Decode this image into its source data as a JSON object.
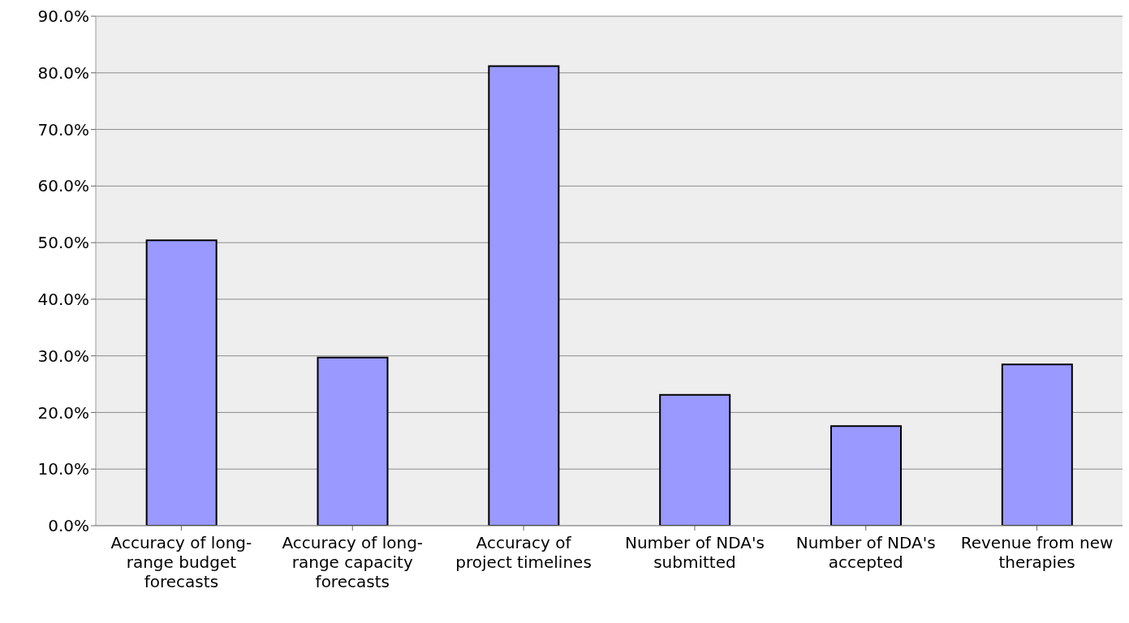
{
  "chart_data": {
    "type": "bar",
    "categories": [
      "Accuracy of long-range budget forecasts",
      "Accuracy of long-range capacity forecasts",
      "Accuracy of project timelines",
      "Number of NDA's submitted",
      "Number of NDA's accepted",
      "Revenue from new therapies"
    ],
    "values": [
      50.4,
      29.7,
      81.2,
      23.1,
      17.6,
      28.5
    ],
    "color": "#9999ff",
    "ylim": [
      0,
      90
    ],
    "yticks": [
      {
        "value": 0,
        "label": "0.0%"
      },
      {
        "value": 10,
        "label": "10.0%"
      },
      {
        "value": 20,
        "label": "20.0%"
      },
      {
        "value": 30,
        "label": "30.0%"
      },
      {
        "value": 40,
        "label": "40.0%"
      },
      {
        "value": 50,
        "label": "50.0%"
      },
      {
        "value": 60,
        "label": "60.0%"
      },
      {
        "value": 70,
        "label": "70.0%"
      },
      {
        "value": 80,
        "label": "80.0%"
      },
      {
        "value": 90,
        "label": "90.0%"
      }
    ],
    "grid": "y"
  }
}
